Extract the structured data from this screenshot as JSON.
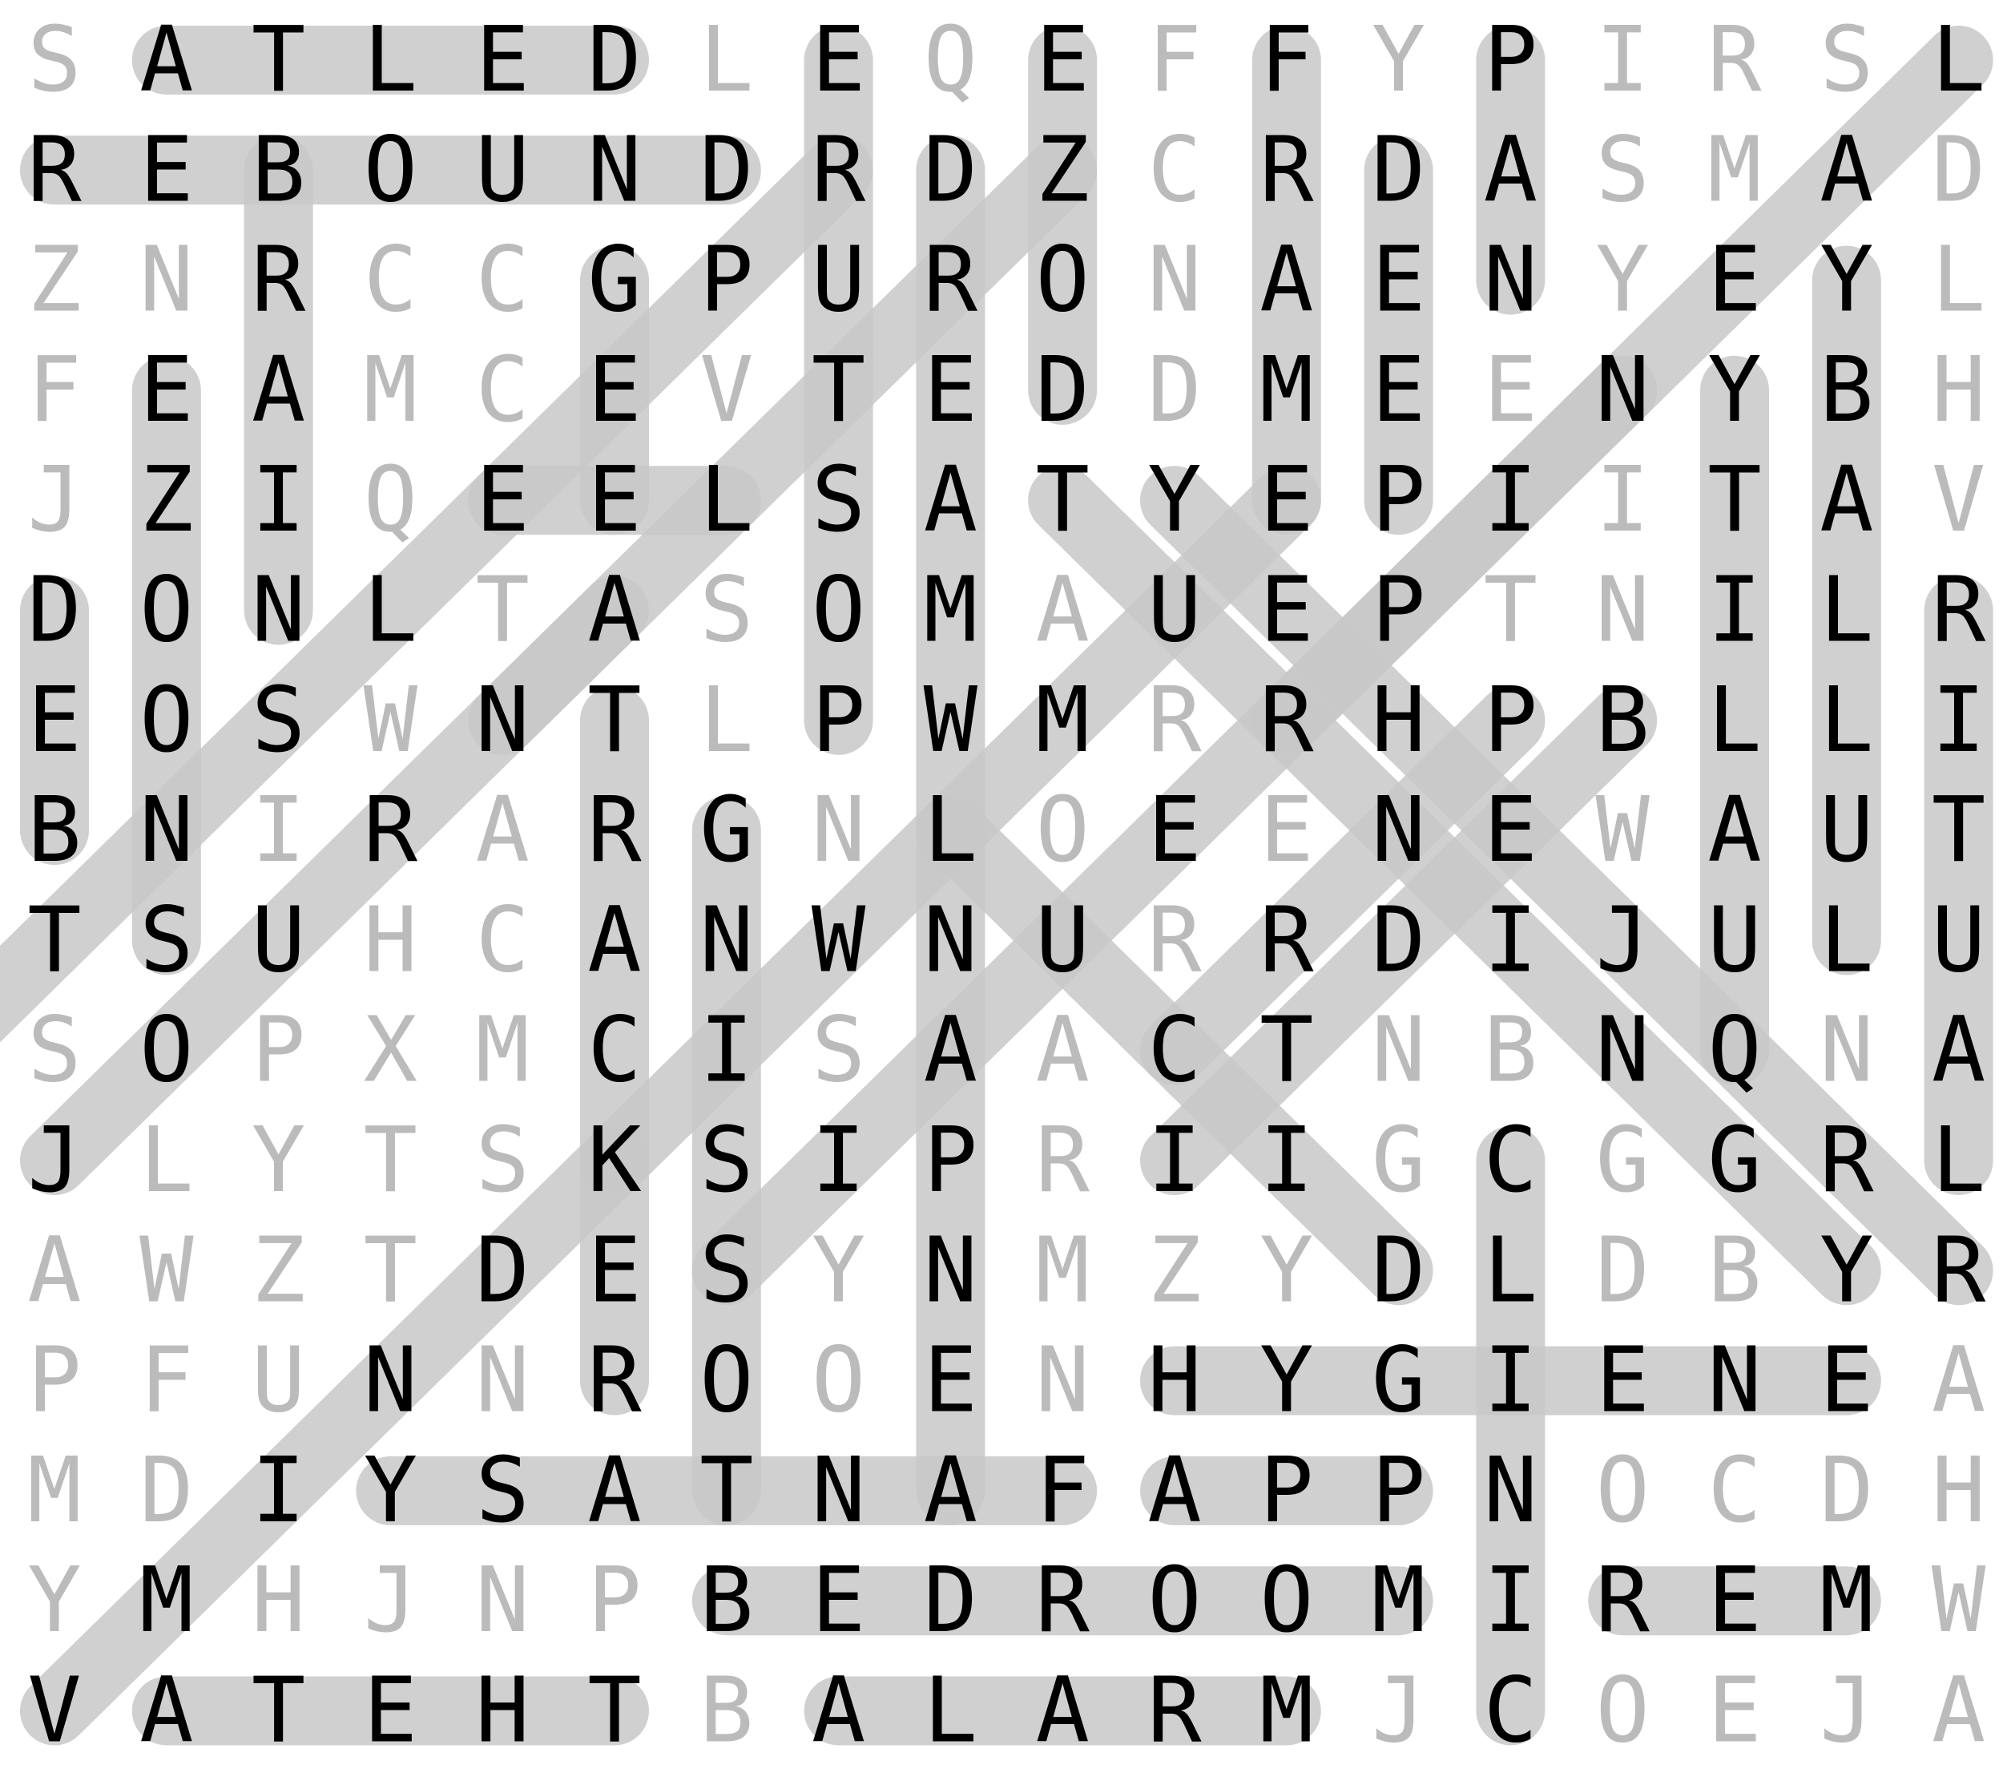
{
  "puzzle": {
    "rows": [
      "SATLEDLEQEFFYPIRSL",
      "REBOUNDRDZCRDASMAD",
      "ZNRCCGPURONAENYEYL",
      "FEAMCEVTEDDMEENYBH",
      "JZIQEELSATYEPIITAV",
      "DONLTASOMAUEPTNILR",
      "EOSWNTLPWMRRHPBLLI",
      "BNIRARGNLOEENEWAUT",
      "TSUHCANWNURRDIJULU",
      "SOPXMCISAACTNBNQNA",
      "JLYTSKSIPRIIGCGGRL",
      "AWZTDESYNMZYDLDBYR",
      "PFUNNROOENHYGIENEA",
      "MDIYSATNAFAPPNOCDH",
      "YMHJNPBEDROOMIREMW",
      "VATEHTBALARMJCOEJA"
    ],
    "found": [
      [
        [
          0,
          1
        ],
        [
          0,
          5
        ]
      ],
      [
        [
          1,
          0
        ],
        [
          1,
          6
        ]
      ],
      [
        [
          15,
          1
        ],
        [
          15,
          5
        ]
      ],
      [
        [
          15,
          7
        ],
        [
          15,
          11
        ]
      ],
      [
        [
          14,
          6
        ],
        [
          14,
          12
        ]
      ],
      [
        [
          14,
          14
        ],
        [
          14,
          16
        ]
      ],
      [
        [
          12,
          10
        ],
        [
          12,
          16
        ]
      ],
      [
        [
          13,
          3
        ],
        [
          13,
          9
        ]
      ],
      [
        [
          13,
          10
        ],
        [
          13,
          12
        ]
      ],
      [
        [
          0,
          7
        ],
        [
          6,
          7
        ]
      ],
      [
        [
          0,
          9
        ],
        [
          3,
          9
        ]
      ],
      [
        [
          0,
          11
        ],
        [
          4,
          11
        ]
      ],
      [
        [
          0,
          13
        ],
        [
          2,
          13
        ]
      ],
      [
        [
          1,
          12
        ],
        [
          4,
          12
        ]
      ],
      [
        [
          1,
          8
        ],
        [
          13,
          8
        ]
      ],
      [
        [
          1,
          2
        ],
        [
          5,
          2
        ]
      ],
      [
        [
          2,
          5
        ],
        [
          4,
          5
        ]
      ],
      [
        [
          2,
          16
        ],
        [
          8,
          16
        ]
      ],
      [
        [
          3,
          1
        ],
        [
          8,
          1
        ]
      ],
      [
        [
          3,
          15
        ],
        [
          9,
          15
        ]
      ],
      [
        [
          5,
          0
        ],
        [
          7,
          0
        ]
      ],
      [
        [
          5,
          17
        ],
        [
          10,
          17
        ]
      ],
      [
        [
          6,
          5
        ],
        [
          12,
          5
        ]
      ],
      [
        [
          7,
          6
        ],
        [
          13,
          6
        ]
      ],
      [
        [
          10,
          13
        ],
        [
          15,
          13
        ]
      ],
      [
        [
          0,
          17
        ],
        [
          6,
          11
        ]
      ],
      [
        [
          1,
          7
        ],
        [
          9,
          -1
        ]
      ],
      [
        [
          1,
          9
        ],
        [
          10,
          0
        ]
      ],
      [
        [
          3,
          14
        ],
        [
          11,
          6
        ]
      ],
      [
        [
          6,
          14
        ],
        [
          10,
          10
        ]
      ],
      [
        [
          10,
          5
        ],
        [
          15,
          0
        ]
      ],
      [
        [
          4,
          4
        ],
        [
          4,
          6
        ]
      ],
      [
        [
          5,
          5
        ],
        [
          6,
          4
        ]
      ],
      [
        [
          4,
          9
        ],
        [
          11,
          16
        ]
      ],
      [
        [
          4,
          10
        ],
        [
          11,
          17
        ]
      ],
      [
        [
          7,
          8
        ],
        [
          11,
          12
        ]
      ],
      [
        [
          4,
          11
        ],
        [
          10,
          5
        ]
      ],
      [
        [
          6,
          13
        ],
        [
          9,
          10
        ]
      ]
    ]
  }
}
